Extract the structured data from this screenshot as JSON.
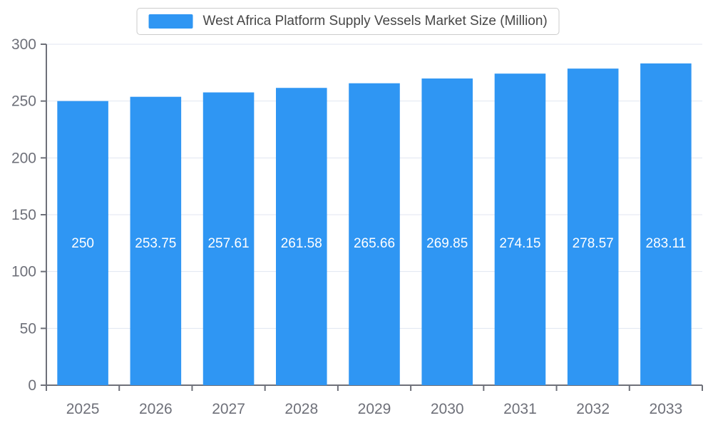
{
  "chart_data": {
    "type": "bar",
    "title": "West Africa Platform Supply Vessels Market Size (Million)",
    "categories": [
      "2025",
      "2026",
      "2027",
      "2028",
      "2029",
      "2030",
      "2031",
      "2032",
      "2033"
    ],
    "values": [
      250,
      253.75,
      257.61,
      261.58,
      265.66,
      269.85,
      274.15,
      278.57,
      283.11
    ],
    "value_labels": [
      "250",
      "253.75",
      "257.61",
      "261.58",
      "265.66",
      "269.85",
      "274.15",
      "278.57",
      "283.11"
    ],
    "xlabel": "",
    "ylabel": "",
    "ylim": [
      0,
      300
    ],
    "yticks": [
      0,
      50,
      100,
      150,
      200,
      250,
      300
    ],
    "grid": true,
    "legend_position": "top",
    "colors": {
      "bar": "#2F96F3",
      "bar_value_label": "#ffffff",
      "axis": "#6E7079",
      "tick_label": "#6E7079",
      "gridline": "#E0E6F1",
      "legend_border": "#cccccc",
      "title_text": "#464646",
      "background": "#ffffff"
    }
  }
}
